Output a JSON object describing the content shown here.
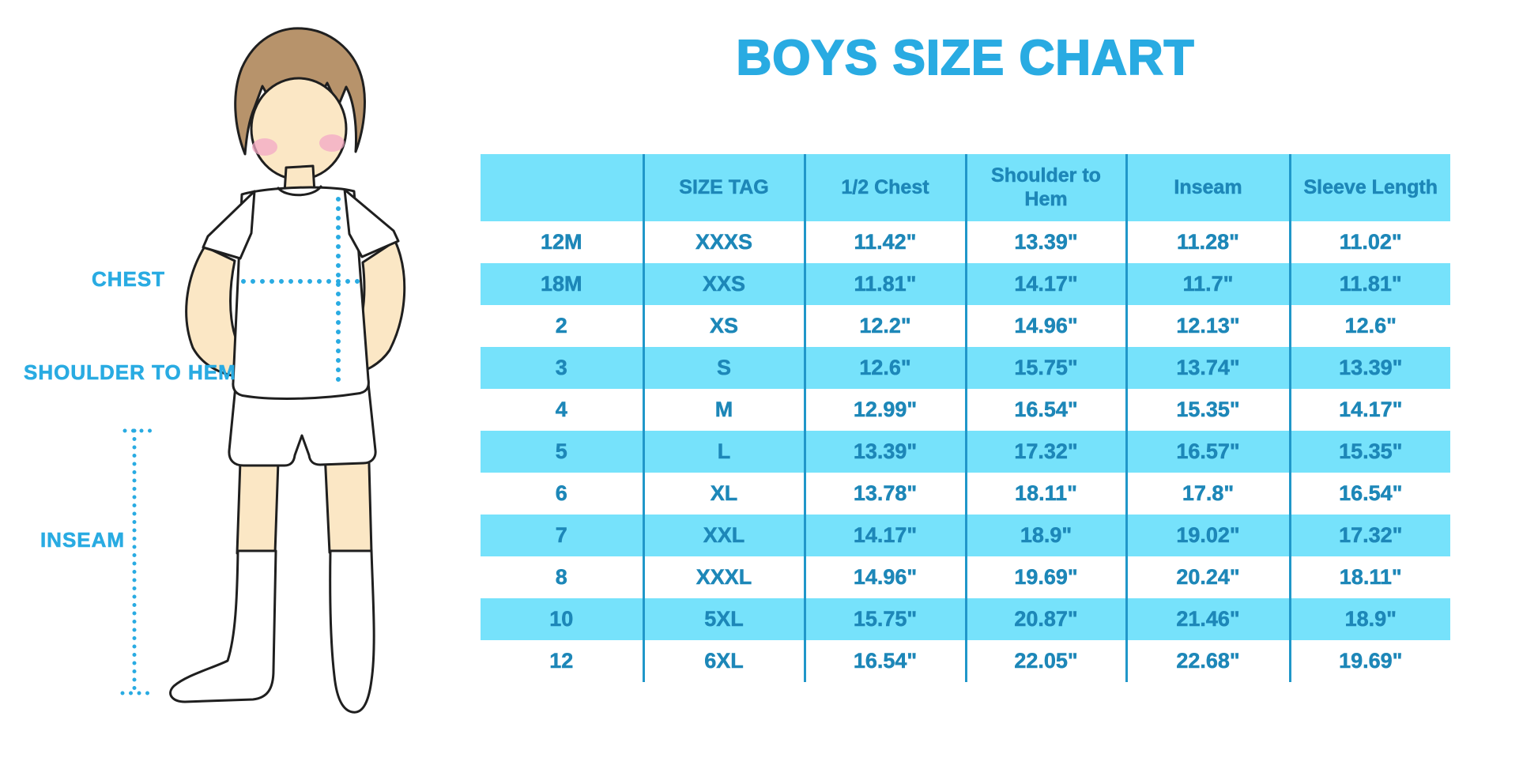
{
  "page": {
    "title": "BOYS SIZE CHART"
  },
  "diagram": {
    "figure": "boy-in-tshirt-shorts-and-knee-socks",
    "labels": {
      "chest": "CHEST",
      "shoulder_to_hem": "SHOULDER TO HEM",
      "inseam": "INSEAM"
    }
  },
  "table": {
    "columns": [
      "",
      "SIZE TAG",
      "1/2 Chest",
      "Shoulder to Hem",
      "Inseam",
      "Sleeve Length"
    ],
    "rows": [
      [
        "12M",
        "XXXS",
        "11.42\"",
        "13.39\"",
        "11.28\"",
        "11.02\""
      ],
      [
        "18M",
        "XXS",
        "11.81\"",
        "14.17\"",
        "11.7\"",
        "11.81\""
      ],
      [
        "2",
        "XS",
        "12.2\"",
        "14.96\"",
        "12.13\"",
        "12.6\""
      ],
      [
        "3",
        "S",
        "12.6\"",
        "15.75\"",
        "13.74\"",
        "13.39\""
      ],
      [
        "4",
        "M",
        "12.99\"",
        "16.54\"",
        "15.35\"",
        "14.17\""
      ],
      [
        "5",
        "L",
        "13.39\"",
        "17.32\"",
        "16.57\"",
        "15.35\""
      ],
      [
        "6",
        "XL",
        "13.78\"",
        "18.11\"",
        "17.8\"",
        "16.54\""
      ],
      [
        "7",
        "XXL",
        "14.17\"",
        "18.9\"",
        "19.02\"",
        "17.32\""
      ],
      [
        "8",
        "XXXL",
        "14.96\"",
        "19.69\"",
        "20.24\"",
        "18.11\""
      ],
      [
        "10",
        "5XL",
        "15.75\"",
        "20.87\"",
        "21.46\"",
        "18.9\""
      ],
      [
        "12",
        "6XL",
        "16.54\"",
        "22.05\"",
        "22.68\"",
        "19.69\""
      ]
    ]
  },
  "colors": {
    "accent_blue": "#29ABE2",
    "row_fill": "#76E2FB",
    "table_text": "#1D87B8",
    "table_line": "#2097C9",
    "skin": "#FBE7C5",
    "hair": "#B7936B",
    "cheek": "#F3A8C6",
    "outline": "#1F1F1F"
  }
}
